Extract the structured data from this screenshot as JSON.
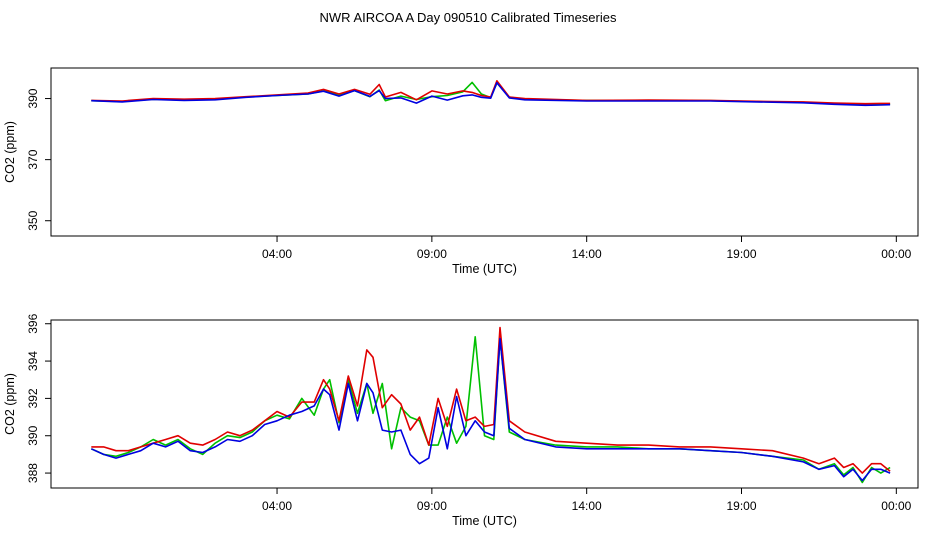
{
  "title": "NWR AIRCOA A  Day 090510  Calibrated Timeseries",
  "colors": {
    "series_green": "#00c000",
    "series_red": "#e00000",
    "series_blue": "#0000e0"
  },
  "chart_data": [
    {
      "type": "line",
      "title": "NWR AIRCOA A  Day 090510  Calibrated Timeseries",
      "xlabel": "Time (UTC)",
      "ylabel": "CO2 (ppm)",
      "xlim": [
        -3.3,
        24.7
      ],
      "ylim": [
        345,
        400
      ],
      "x_ticks": [
        {
          "value": 4,
          "label": "04:00"
        },
        {
          "value": 9,
          "label": "09:00"
        },
        {
          "value": 14,
          "label": "14:00"
        },
        {
          "value": 19,
          "label": "19:00"
        },
        {
          "value": 24,
          "label": "00:00"
        }
      ],
      "y_ticks": [
        {
          "value": 350,
          "label": "350"
        },
        {
          "value": 370,
          "label": "370"
        },
        {
          "value": 390,
          "label": "390"
        }
      ],
      "series": [
        {
          "name": "green",
          "color": "#00c000",
          "x": [
            -2,
            -1,
            0,
            1,
            2,
            3,
            4,
            5,
            5.5,
            6,
            6.5,
            7,
            7.3,
            7.5,
            8,
            8.5,
            9,
            9.5,
            10,
            10.3,
            10.6,
            10.9,
            11.1,
            11.5,
            12,
            14,
            16,
            18,
            20,
            21,
            22,
            23,
            23.5,
            23.8
          ],
          "y": [
            389.3,
            389.0,
            389.8,
            389.5,
            389.8,
            390.5,
            391,
            391.5,
            392.5,
            391.2,
            392.6,
            390.6,
            392.8,
            389.3,
            390.8,
            389.7,
            390.6,
            391.0,
            392.2,
            395.3,
            391.5,
            390.3,
            395.1,
            390.5,
            389.7,
            389.4,
            389.3,
            389.3,
            388.9,
            388.8,
            388.2,
            387.9,
            388.0,
            388.2
          ]
        },
        {
          "name": "red",
          "color": "#e00000",
          "x": [
            -2,
            -1,
            0,
            1,
            2,
            3,
            4,
            5,
            5.5,
            6,
            6.5,
            7,
            7.3,
            7.5,
            8,
            8.5,
            9,
            9.5,
            10,
            10.3,
            10.6,
            10.9,
            11.1,
            11.5,
            12,
            14,
            16,
            18,
            20,
            21,
            22,
            23,
            23.5,
            23.8
          ],
          "y": [
            389.4,
            389.2,
            390.0,
            389.8,
            390.0,
            390.6,
            391.2,
            391.8,
            393.0,
            391.5,
            393.0,
            391.4,
            394.6,
            390.5,
            392.0,
            389.6,
            392.5,
            391.5,
            392.5,
            392.0,
            391.0,
            390.5,
            395.8,
            390.5,
            390.0,
            389.4,
            389.5,
            389.4,
            389.0,
            388.9,
            388.5,
            388.3,
            388.4,
            388.4
          ]
        },
        {
          "name": "blue",
          "color": "#0000e0",
          "x": [
            -2,
            -1,
            0,
            1,
            2,
            3,
            4,
            5,
            5.5,
            6,
            6.5,
            7,
            7.3,
            7.5,
            8,
            8.5,
            9,
            9.5,
            10,
            10.3,
            10.6,
            10.9,
            11.1,
            11.5,
            12,
            14,
            16,
            18,
            20,
            21,
            22,
            23,
            23.5,
            23.8
          ],
          "y": [
            389.3,
            388.9,
            389.7,
            389.4,
            389.6,
            390.4,
            391.0,
            391.5,
            392.4,
            390.8,
            392.6,
            390.7,
            392.6,
            390.0,
            390.2,
            388.5,
            390.8,
            389.5,
            390.9,
            391.2,
            390.4,
            390.1,
            395.2,
            390.2,
            389.6,
            389.2,
            389.2,
            389.2,
            388.8,
            388.6,
            388.1,
            387.8,
            387.9,
            388.0
          ]
        }
      ]
    },
    {
      "type": "line",
      "xlabel": "Time (UTC)",
      "ylabel": "CO2 (ppm)",
      "xlim": [
        -3.3,
        24.7
      ],
      "ylim": [
        387.2,
        396.2
      ],
      "x_ticks": [
        {
          "value": 4,
          "label": "04:00"
        },
        {
          "value": 9,
          "label": "09:00"
        },
        {
          "value": 14,
          "label": "14:00"
        },
        {
          "value": 19,
          "label": "19:00"
        },
        {
          "value": 24,
          "label": "00:00"
        }
      ],
      "y_ticks": [
        {
          "value": 388,
          "label": "388"
        },
        {
          "value": 390,
          "label": "390"
        },
        {
          "value": 392,
          "label": "392"
        },
        {
          "value": 394,
          "label": "394"
        },
        {
          "value": 396,
          "label": "396"
        }
      ],
      "series": [
        {
          "name": "green",
          "color": "#00c000",
          "x": [
            -2,
            -1.6,
            -1.2,
            -0.8,
            -0.4,
            0,
            0.4,
            0.8,
            1.2,
            1.6,
            2,
            2.4,
            2.8,
            3.2,
            3.6,
            4,
            4.4,
            4.8,
            5.2,
            5.5,
            5.7,
            6,
            6.3,
            6.6,
            6.9,
            7.1,
            7.4,
            7.7,
            8,
            8.3,
            8.6,
            8.9,
            9.2,
            9.5,
            9.8,
            10.1,
            10.4,
            10.7,
            11,
            11.2,
            11.5,
            12,
            13,
            14,
            15,
            16,
            17,
            18,
            19,
            20,
            21,
            21.5,
            22,
            22.3,
            22.6,
            22.9,
            23.2,
            23.5,
            23.8
          ],
          "y": [
            389.3,
            389.0,
            388.9,
            389.1,
            389.4,
            389.8,
            389.5,
            389.8,
            389.3,
            389.0,
            389.6,
            390.0,
            389.9,
            390.2,
            390.8,
            391.1,
            390.9,
            392.0,
            391.1,
            392.5,
            393.0,
            390.7,
            393.0,
            391.2,
            392.8,
            391.2,
            392.8,
            389.3,
            391.5,
            391.0,
            390.8,
            389.5,
            389.5,
            391.0,
            389.6,
            390.5,
            395.3,
            390.0,
            389.8,
            395.2,
            390.2,
            389.8,
            389.5,
            389.4,
            389.4,
            389.3,
            389.3,
            389.2,
            389.1,
            388.9,
            388.7,
            388.2,
            388.5,
            387.9,
            388.3,
            387.5,
            388.3,
            388.0,
            388.3
          ]
        },
        {
          "name": "red",
          "color": "#e00000",
          "x": [
            -2,
            -1.6,
            -1.2,
            -0.8,
            -0.4,
            0,
            0.4,
            0.8,
            1.2,
            1.6,
            2,
            2.4,
            2.8,
            3.2,
            3.6,
            4,
            4.4,
            4.8,
            5.2,
            5.5,
            5.7,
            6,
            6.3,
            6.6,
            6.9,
            7.1,
            7.4,
            7.7,
            8,
            8.3,
            8.6,
            8.9,
            9.2,
            9.5,
            9.8,
            10.1,
            10.4,
            10.7,
            11,
            11.2,
            11.5,
            12,
            13,
            14,
            15,
            16,
            17,
            18,
            19,
            20,
            21,
            21.5,
            22,
            22.3,
            22.6,
            22.9,
            23.2,
            23.5,
            23.8
          ],
          "y": [
            389.4,
            389.4,
            389.2,
            389.2,
            389.4,
            389.6,
            389.8,
            390.0,
            389.6,
            389.5,
            389.8,
            390.2,
            390.0,
            390.3,
            390.8,
            391.3,
            391.0,
            391.8,
            391.8,
            393.0,
            392.5,
            390.8,
            393.2,
            391.6,
            394.6,
            394.2,
            391.5,
            392.2,
            391.7,
            390.3,
            391.0,
            389.5,
            392.0,
            390.5,
            392.5,
            390.8,
            391.0,
            390.5,
            390.6,
            395.8,
            390.8,
            390.2,
            389.7,
            389.6,
            389.5,
            389.5,
            389.4,
            389.4,
            389.3,
            389.2,
            388.8,
            388.5,
            388.8,
            388.3,
            388.5,
            388.0,
            388.5,
            388.5,
            388.1
          ]
        },
        {
          "name": "blue",
          "color": "#0000e0",
          "x": [
            -2,
            -1.6,
            -1.2,
            -0.8,
            -0.4,
            0,
            0.4,
            0.8,
            1.2,
            1.6,
            2,
            2.4,
            2.8,
            3.2,
            3.6,
            4,
            4.4,
            4.8,
            5.2,
            5.5,
            5.7,
            6,
            6.3,
            6.6,
            6.9,
            7.1,
            7.4,
            7.7,
            8,
            8.3,
            8.6,
            8.9,
            9.2,
            9.5,
            9.8,
            10.1,
            10.4,
            10.7,
            11,
            11.2,
            11.5,
            12,
            13,
            14,
            15,
            16,
            17,
            18,
            19,
            20,
            21,
            21.5,
            22,
            22.3,
            22.6,
            22.9,
            23.2,
            23.5,
            23.8
          ],
          "y": [
            389.3,
            389.0,
            388.8,
            389.0,
            389.2,
            389.6,
            389.4,
            389.7,
            389.2,
            389.1,
            389.4,
            389.8,
            389.7,
            390.0,
            390.6,
            390.8,
            391.1,
            391.3,
            391.6,
            392.5,
            392.2,
            390.3,
            392.8,
            390.8,
            392.8,
            392.3,
            390.3,
            390.2,
            390.3,
            389.0,
            388.5,
            388.8,
            391.5,
            389.3,
            392.1,
            390.0,
            390.8,
            390.2,
            390.0,
            395.2,
            390.4,
            389.8,
            389.4,
            389.3,
            389.3,
            389.3,
            389.3,
            389.2,
            389.1,
            388.9,
            388.6,
            388.2,
            388.4,
            387.8,
            388.2,
            387.6,
            388.2,
            388.2,
            388.0
          ]
        }
      ]
    }
  ]
}
